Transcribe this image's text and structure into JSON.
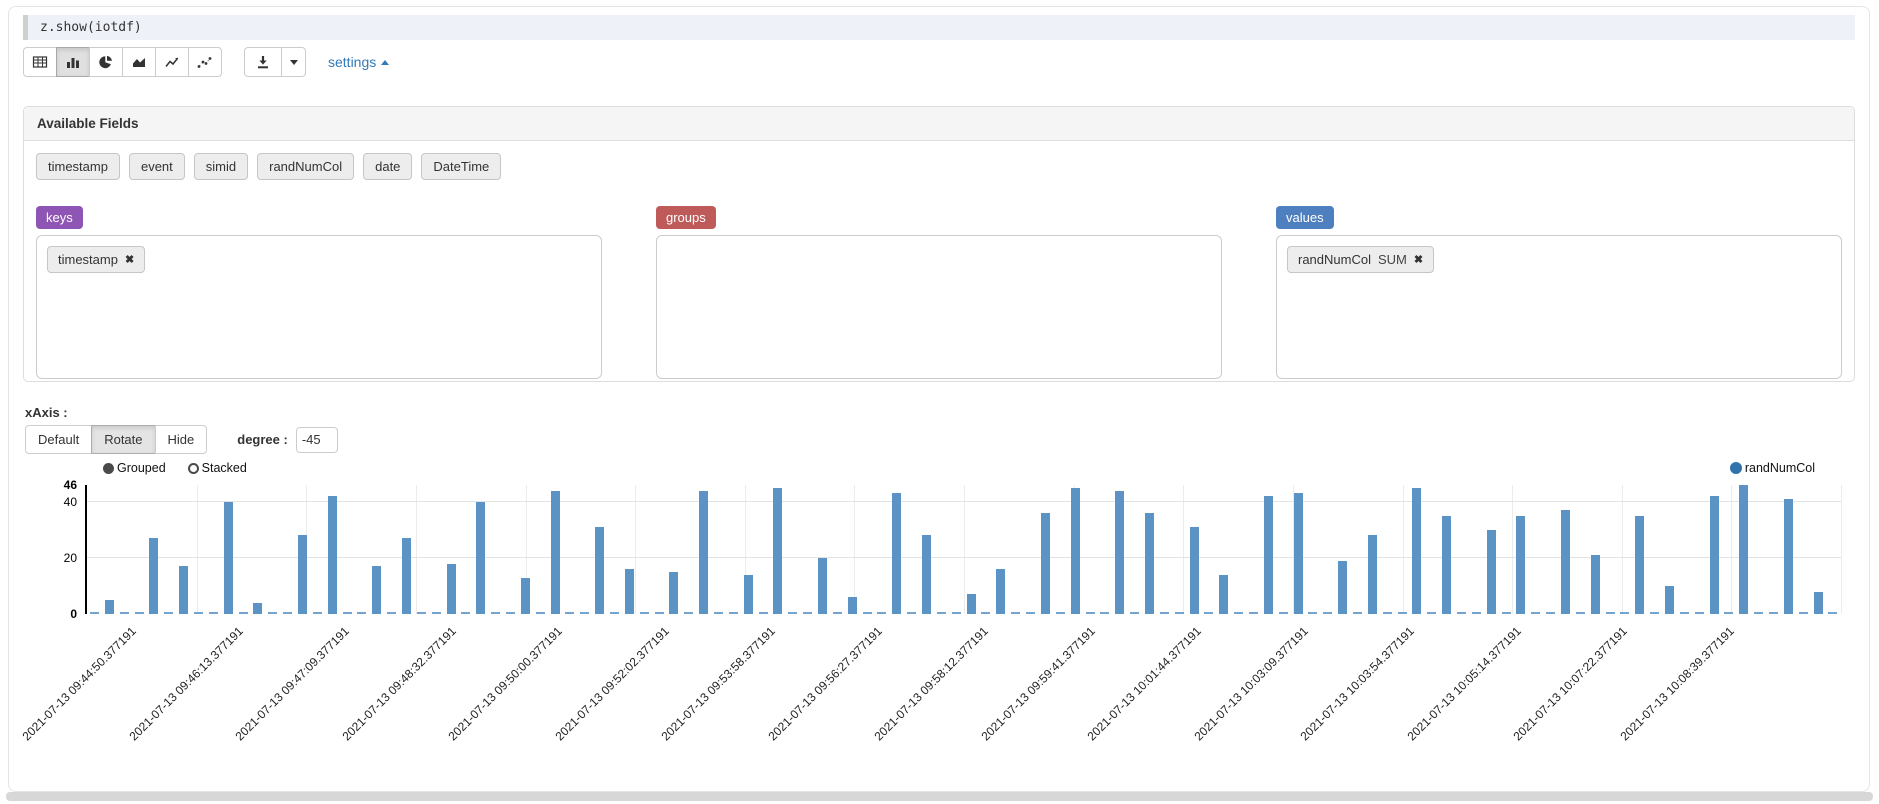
{
  "code": {
    "text": "z.show(iotdf)"
  },
  "toolbar": {
    "chart_buttons": [
      {
        "icon": "table-icon",
        "selected": false
      },
      {
        "icon": "bar-chart-icon",
        "selected": true
      },
      {
        "icon": "pie-chart-icon",
        "selected": false
      },
      {
        "icon": "area-chart-icon",
        "selected": false
      },
      {
        "icon": "line-chart-icon",
        "selected": false
      },
      {
        "icon": "scatter-chart-icon",
        "selected": false
      }
    ],
    "download_icon": "download-icon",
    "download_caret_icon": "caret-down-icon",
    "settings_label": "settings",
    "settings_caret_icon": "caret-up-icon",
    "link_color": "#337ab7"
  },
  "fields_panel": {
    "title": "Available Fields",
    "fields": [
      "timestamp",
      "event",
      "simid",
      "randNumCol",
      "date",
      "DateTime"
    ],
    "drop_zones": [
      {
        "name": "keys",
        "label": "keys",
        "color": "#8e55b5",
        "items": [
          {
            "text": "timestamp",
            "agg": "",
            "remove_icon": "✖"
          }
        ]
      },
      {
        "name": "groups",
        "label": "groups",
        "color": "#bf5a5a",
        "items": []
      },
      {
        "name": "values",
        "label": "values",
        "color": "#4e7fbf",
        "items": [
          {
            "text": "randNumCol",
            "agg": "SUM",
            "remove_icon": "✖"
          }
        ]
      }
    ]
  },
  "xaxis_settings": {
    "label": "xAxis :",
    "buttons": [
      {
        "label": "Default",
        "active": false
      },
      {
        "label": "Rotate",
        "active": true
      },
      {
        "label": "Hide",
        "active": false
      }
    ],
    "degree_label": "degree :",
    "degree_value": "-45"
  },
  "chart_controls": {
    "grouped_label": "Grouped",
    "stacked_label": "Stacked",
    "selected": "Grouped"
  },
  "chart_data": {
    "type": "bar",
    "title": "",
    "xlabel": "",
    "ylabel": "",
    "legend": {
      "name": "randNumCol",
      "color": "#3173ad",
      "position": "top-right"
    },
    "bar_color": "#5b93c5",
    "grid": true,
    "xlabel_rotation": -45,
    "ylim": [
      0,
      46
    ],
    "yticks": [
      {
        "value": 0,
        "bold": true
      },
      {
        "value": 20,
        "bold": false
      },
      {
        "value": 40,
        "bold": false
      },
      {
        "value": 46,
        "bold": true
      }
    ],
    "series": [
      {
        "name": "randNumCol",
        "values": [
          0,
          5,
          0,
          0,
          27,
          0,
          17,
          0,
          0,
          40,
          0,
          4,
          0,
          0,
          28,
          0,
          42,
          0,
          0,
          17,
          0,
          27,
          0,
          0,
          18,
          0,
          40,
          0,
          0,
          13,
          0,
          44,
          0,
          0,
          31,
          0,
          16,
          0,
          0,
          15,
          0,
          44,
          0,
          0,
          14,
          0,
          45,
          0,
          0,
          20,
          0,
          6,
          0,
          0,
          43,
          0,
          28,
          0,
          0,
          7,
          0,
          16,
          0,
          0,
          36,
          0,
          45,
          0,
          0,
          44,
          0,
          36,
          0,
          0,
          31,
          0,
          14,
          0,
          0,
          42,
          0,
          43,
          0,
          0,
          19,
          0,
          28,
          0,
          0,
          45,
          0,
          35,
          0,
          0,
          30,
          0,
          35,
          0,
          0,
          37,
          0,
          21,
          0,
          0,
          35,
          0,
          10,
          0,
          0,
          42,
          0,
          46,
          0,
          0,
          41,
          0,
          8,
          0
        ]
      }
    ],
    "xtick_labels": [
      "2021-07-13 09:44:50.377191",
      "2021-07-13 09:46:13.377191",
      "2021-07-13 09:47:09.377191",
      "2021-07-13 09:48:32.377191",
      "2021-07-13 09:50:00.377191",
      "2021-07-13 09:52:02.377191",
      "2021-07-13 09:53:58.377191",
      "2021-07-13 09:56:27.377191",
      "2021-07-13 09:58:12.377191",
      "2021-07-13 09:59:41.377191",
      "2021-07-13 10:01:44.377191",
      "2021-07-13 10:03:09.377191",
      "2021-07-13 10:03:54.377191",
      "2021-07-13 10:05:14.377191",
      "2021-07-13 10:07:22.377191",
      "2021-07-13 10:08:39.377191"
    ]
  }
}
